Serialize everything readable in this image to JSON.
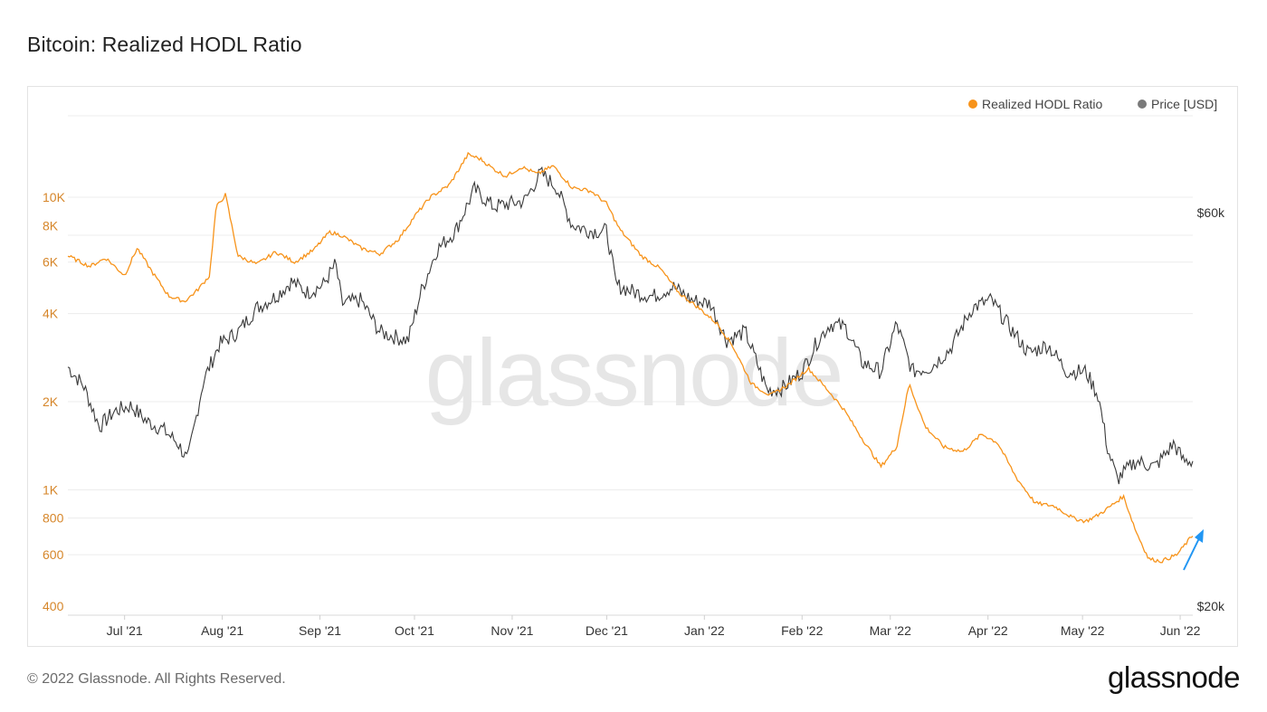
{
  "title": "Bitcoin: Realized HODL Ratio",
  "footer": "© 2022 Glassnode. All Rights Reserved.",
  "logo": "glassnode",
  "watermark": "glassnode",
  "colors": {
    "hodl": "#f7931a",
    "price": "#3a3a3a",
    "left_axis": "#d6862a",
    "arrow": "#2196f3",
    "grid": "#ececec"
  },
  "chart_data": {
    "type": "line",
    "legend": [
      "Realized HODL Ratio",
      "Price [USD]"
    ],
    "legend_position": "top-right",
    "grid": true,
    "left_axis": {
      "scale": "log",
      "ticks": [
        "400",
        "600",
        "800",
        "1K",
        "2K",
        "4K",
        "6K",
        "8K",
        "10K"
      ],
      "tick_values": [
        400,
        600,
        800,
        1000,
        2000,
        4000,
        6000,
        8000,
        10000
      ]
    },
    "right_axis": {
      "scale": "log",
      "ticks": [
        "$20k",
        "$60k"
      ],
      "tick_values": [
        20000,
        60000
      ]
    },
    "x_ticks": [
      "Jul '21",
      "Aug '21",
      "Sep '21",
      "Oct '21",
      "Nov '21",
      "Dec '21",
      "Jan '22",
      "Feb '22",
      "Mar '22",
      "Apr '22",
      "May '22",
      "Jun '22"
    ],
    "x_tick_dates": [
      "2021-07-01",
      "2021-08-01",
      "2021-09-01",
      "2021-10-01",
      "2021-11-01",
      "2021-12-01",
      "2022-01-01",
      "2022-02-01",
      "2022-03-01",
      "2022-04-01",
      "2022-05-01",
      "2022-06-01"
    ],
    "x_range": [
      "2021-06-13",
      "2022-06-05"
    ],
    "series": [
      {
        "name": "Realized HODL Ratio",
        "axis": "left",
        "x": [
          "2021-06-13",
          "2021-06-20",
          "2021-06-25",
          "2021-07-01",
          "2021-07-05",
          "2021-07-10",
          "2021-07-15",
          "2021-07-20",
          "2021-07-24",
          "2021-07-28",
          "2021-07-30",
          "2021-08-02",
          "2021-08-06",
          "2021-08-12",
          "2021-08-18",
          "2021-08-24",
          "2021-08-30",
          "2021-09-04",
          "2021-09-08",
          "2021-09-14",
          "2021-09-20",
          "2021-09-26",
          "2021-10-01",
          "2021-10-06",
          "2021-10-12",
          "2021-10-18",
          "2021-10-22",
          "2021-10-26",
          "2021-10-30",
          "2021-11-04",
          "2021-11-09",
          "2021-11-14",
          "2021-11-20",
          "2021-11-26",
          "2021-12-01",
          "2021-12-05",
          "2021-12-12",
          "2021-12-18",
          "2021-12-24",
          "2021-12-30",
          "2022-01-05",
          "2022-01-10",
          "2022-01-16",
          "2022-01-22",
          "2022-01-28",
          "2022-02-03",
          "2022-02-09",
          "2022-02-14",
          "2022-02-20",
          "2022-02-26",
          "2022-03-03",
          "2022-03-07",
          "2022-03-12",
          "2022-03-18",
          "2022-03-24",
          "2022-03-30",
          "2022-04-04",
          "2022-04-10",
          "2022-04-16",
          "2022-04-22",
          "2022-04-28",
          "2022-05-02",
          "2022-05-06",
          "2022-05-10",
          "2022-05-14",
          "2022-05-18",
          "2022-05-22",
          "2022-05-26",
          "2022-05-31",
          "2022-06-05"
        ],
        "values": [
          6300,
          5800,
          6200,
          5400,
          6700,
          5500,
          4600,
          4400,
          4800,
          5400,
          9200,
          10200,
          6300,
          5900,
          6500,
          6000,
          6600,
          7600,
          7400,
          6700,
          6400,
          7200,
          8600,
          10000,
          11000,
          14000,
          13500,
          12500,
          11800,
          12700,
          12000,
          12800,
          10800,
          10500,
          9500,
          7800,
          6300,
          5700,
          4700,
          4200,
          3700,
          3100,
          2300,
          2100,
          2300,
          2600,
          2200,
          1900,
          1500,
          1200,
          1400,
          2300,
          1650,
          1400,
          1350,
          1550,
          1450,
          1100,
          900,
          880,
          800,
          780,
          820,
          880,
          950,
          720,
          580,
          570,
          600,
          700
        ]
      },
      {
        "name": "Price [USD]",
        "axis": "right",
        "x": [
          "2021-06-13",
          "2021-06-18",
          "2021-06-23",
          "2021-06-28",
          "2021-07-03",
          "2021-07-08",
          "2021-07-13",
          "2021-07-18",
          "2021-07-21",
          "2021-07-26",
          "2021-07-31",
          "2021-08-06",
          "2021-08-12",
          "2021-08-18",
          "2021-08-23",
          "2021-08-28",
          "2021-09-02",
          "2021-09-06",
          "2021-09-08",
          "2021-09-14",
          "2021-09-20",
          "2021-09-24",
          "2021-09-29",
          "2021-10-03",
          "2021-10-08",
          "2021-10-14",
          "2021-10-20",
          "2021-10-26",
          "2021-10-31",
          "2021-11-05",
          "2021-11-10",
          "2021-11-15",
          "2021-11-20",
          "2021-11-26",
          "2021-12-01",
          "2021-12-04",
          "2021-12-10",
          "2021-12-16",
          "2021-12-22",
          "2021-12-28",
          "2022-01-03",
          "2022-01-08",
          "2022-01-14",
          "2022-01-21",
          "2022-01-26",
          "2022-02-01",
          "2022-02-06",
          "2022-02-10",
          "2022-02-15",
          "2022-02-20",
          "2022-02-26",
          "2022-03-03",
          "2022-03-08",
          "2022-03-14",
          "2022-03-20",
          "2022-03-27",
          "2022-04-02",
          "2022-04-08",
          "2022-04-14",
          "2022-04-20",
          "2022-04-26",
          "2022-05-02",
          "2022-05-06",
          "2022-05-09",
          "2022-05-12",
          "2022-05-18",
          "2022-05-24",
          "2022-05-30",
          "2022-06-02",
          "2022-06-05"
        ],
        "values": [
          39000,
          37000,
          33000,
          34500,
          35000,
          33500,
          32800,
          31500,
          30000,
          37500,
          41500,
          43000,
          46000,
          47500,
          49500,
          48000,
          49000,
          52000,
          46500,
          47000,
          43000,
          42500,
          42000,
          48000,
          54000,
          57000,
          64000,
          61000,
          61500,
          62000,
          67000,
          64500,
          58000,
          57000,
          57000,
          49000,
          48000,
          47500,
          48800,
          47000,
          46500,
          42000,
          43000,
          36500,
          36800,
          38500,
          42000,
          44000,
          43500,
          39500,
          38500,
          44000,
          38500,
          39000,
          41000,
          46000,
          47000,
          43500,
          40500,
          41500,
          38500,
          38500,
          36000,
          31000,
          28500,
          30000,
          29500,
          31500,
          30000,
          30000
        ]
      }
    ]
  }
}
